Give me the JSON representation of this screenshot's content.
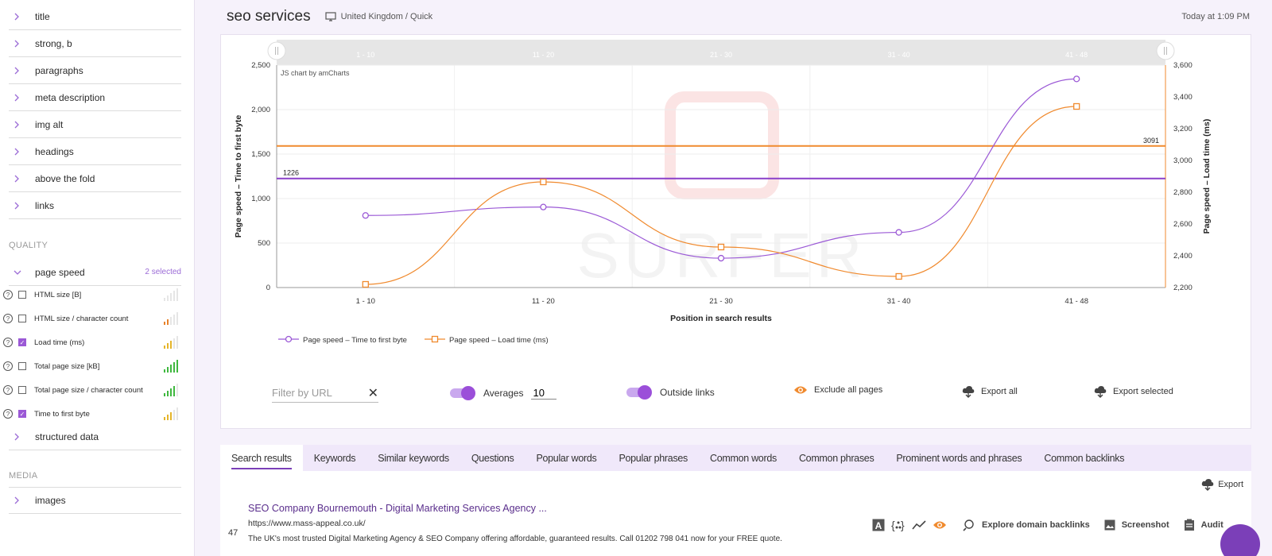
{
  "sidebar": {
    "items_top": [
      "title",
      "strong, b",
      "paragraphs",
      "meta description",
      "img alt",
      "headings",
      "above the fold",
      "links"
    ],
    "quality_label": "QUALITY",
    "page_speed": {
      "label": "page speed",
      "badge": "2 selected"
    },
    "metrics": [
      {
        "label": "HTML size [B]",
        "checked": false,
        "bar_color": "#e0e0e0",
        "level": 0
      },
      {
        "label": "HTML size / character count",
        "checked": false,
        "bar_color": "#e8822a",
        "level": 2
      },
      {
        "label": "Load time (ms)",
        "checked": true,
        "bar_color": "#e5b52a",
        "level": 3
      },
      {
        "label": "Total page size [kB]",
        "checked": false,
        "bar_color": "#3fb83f",
        "level": 5
      },
      {
        "label": "Total page size / character count",
        "checked": false,
        "bar_color": "#3fb83f",
        "level": 4
      },
      {
        "label": "Time to first byte",
        "checked": true,
        "bar_color": "#e5b52a",
        "level": 3
      }
    ],
    "structured_data": "structured data",
    "media_label": "MEDIA",
    "images": "images"
  },
  "header": {
    "title": "seo services",
    "location": "United Kingdom / Quick",
    "timestamp": "Today at 1:09 PM"
  },
  "chart_data": {
    "type": "line",
    "watermark": "JS chart by amCharts",
    "categories": [
      "1 - 10",
      "11 - 20",
      "21 - 30",
      "31 - 40",
      "41 - 48"
    ],
    "xlabel": "Position in search results",
    "ylabel_left": "Page speed – Time to first byte",
    "ylabel_right": "Page speed – Load time (ms)",
    "ylim_left": [
      0,
      2500
    ],
    "ylim_right": [
      2200,
      3600
    ],
    "yticks_left": [
      "0",
      "500",
      "1,000",
      "1,500",
      "2,000",
      "2,500"
    ],
    "yticks_right": [
      "2,200",
      "2,400",
      "2,600",
      "2,800",
      "3,000",
      "3,200",
      "3,400",
      "3,600"
    ],
    "series": [
      {
        "name": "Page speed – Time to first byte",
        "axis": "left",
        "color": "#9b59d6",
        "values": [
          810,
          905,
          330,
          620,
          2345
        ]
      },
      {
        "name": "Page speed – Load time (ms)",
        "axis": "right",
        "color": "#f08a2e",
        "values": [
          2220,
          2865,
          2455,
          2270,
          3340
        ]
      }
    ],
    "averages": [
      {
        "label": "1226",
        "value": 1226,
        "axis": "left",
        "color": "#8a3fc9"
      },
      {
        "label": "3091",
        "value": 3091,
        "axis": "right",
        "color": "#f08a2e"
      }
    ],
    "grid": true,
    "legend_position": "bottom-left"
  },
  "controls": {
    "filter_placeholder": "Filter by URL",
    "averages_label": "Averages",
    "averages_value": "10",
    "outside_links_label": "Outside links",
    "exclude_label": "Exclude all pages",
    "export_all": "Export all",
    "export_selected": "Export selected"
  },
  "tabs": [
    "Search results",
    "Keywords",
    "Similar keywords",
    "Questions",
    "Popular words",
    "Popular phrases",
    "Common words",
    "Common phrases",
    "Prominent words and phrases",
    "Common backlinks"
  ],
  "export_label": "Export",
  "result": {
    "number": "47",
    "title": "SEO Company Bournemouth - Digital Marketing Services Agency ...",
    "url": "https://www.mass-appeal.co.uk/",
    "description": "The UK's most trusted Digital Marketing Agency & SEO Company offering affordable, guaranteed results. Call 01202 798 041 now for your FREE quote.",
    "explore_label": "Explore domain backlinks",
    "screenshot_label": "Screenshot",
    "audit_label": "Audit"
  }
}
